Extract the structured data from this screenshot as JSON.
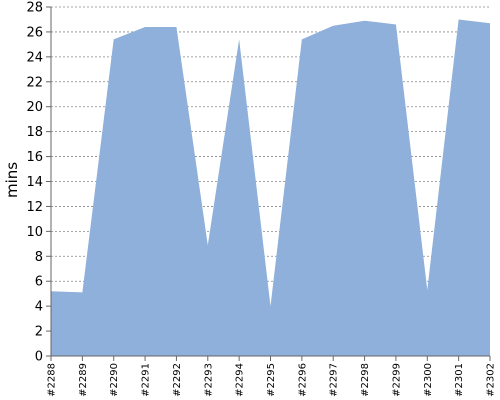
{
  "chart_data": {
    "type": "area",
    "title": "",
    "xlabel": "",
    "ylabel": "mins",
    "categories": [
      "#2288",
      "#2289",
      "#2290",
      "#2291",
      "#2292",
      "#2293",
      "#2294",
      "#2295",
      "#2296",
      "#2297",
      "#2298",
      "#2299",
      "#2300",
      "#2301",
      "#2302"
    ],
    "series": [
      {
        "values": [
          5.2,
          5.1,
          25.4,
          26.4,
          26.4,
          8.9,
          25.4,
          4.0,
          25.4,
          26.5,
          26.9,
          26.6,
          5.3,
          27.0,
          26.7
        ]
      }
    ],
    "ylim": [
      0,
      28
    ],
    "yticks": [
      0,
      2,
      4,
      6,
      8,
      10,
      12,
      14,
      16,
      18,
      20,
      22,
      24,
      26,
      28
    ],
    "grid": true,
    "colors": {
      "fill": "#8eb0da",
      "grid": "#888888",
      "axis": "#666666"
    }
  }
}
